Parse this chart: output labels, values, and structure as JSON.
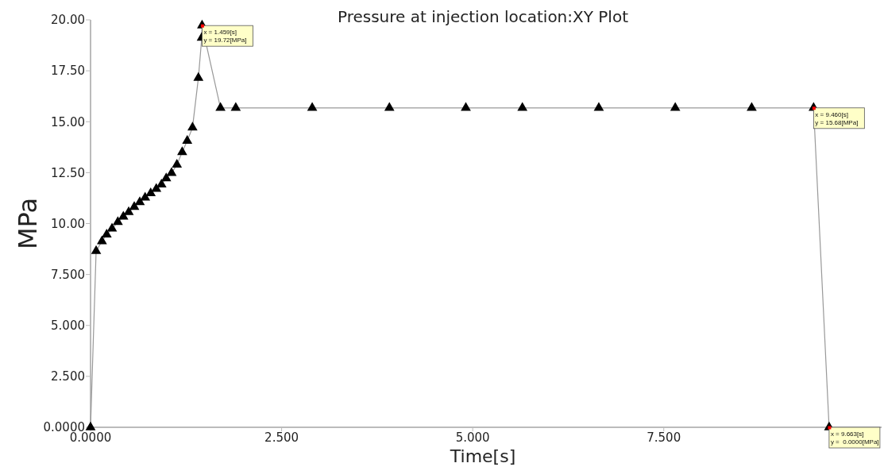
{
  "chart_data": {
    "type": "line",
    "title": "Pressure at injection location:XY Plot",
    "xlabel": "Time[s]",
    "ylabel": "MPa",
    "x": [
      0,
      0.073,
      0.149,
      0.211,
      0.281,
      0.357,
      0.429,
      0.499,
      0.572,
      0.644,
      0.714,
      0.787,
      0.86,
      0.928,
      0.99,
      1.06,
      1.13,
      1.199,
      1.265,
      1.334,
      1.411,
      1.455,
      1.459,
      1.7,
      1.9,
      2.9,
      3.91,
      4.91,
      5.65,
      6.65,
      7.65,
      8.65,
      9.46,
      9.663
    ],
    "series": [
      {
        "color": "#000000",
        "values": [
          0,
          8.65,
          9.13,
          9.46,
          9.75,
          10.07,
          10.34,
          10.56,
          10.82,
          11.05,
          11.27,
          11.49,
          11.7,
          11.92,
          12.22,
          12.48,
          12.89,
          13.51,
          14.06,
          14.71,
          17.15,
          19.12,
          19.72,
          15.68,
          15.68,
          15.68,
          15.68,
          15.68,
          15.68,
          15.68,
          15.68,
          15.68,
          15.68,
          0
        ]
      }
    ],
    "xlim": [
      0,
      10.35
    ],
    "ylim": [
      0,
      20
    ],
    "xticks": [
      {
        "value": 0,
        "label": "0.0000"
      },
      {
        "value": 2.5,
        "label": "2.500"
      },
      {
        "value": 5,
        "label": "5.000"
      },
      {
        "value": 7.5,
        "label": "7.500"
      }
    ],
    "yticks": [
      {
        "value": 0,
        "label": "0.0000"
      },
      {
        "value": 2.5,
        "label": "2.500"
      },
      {
        "value": 5,
        "label": "5.000"
      },
      {
        "value": 7.5,
        "label": "7.500"
      },
      {
        "value": 10,
        "label": "10.00"
      },
      {
        "value": 12.5,
        "label": "12.50"
      },
      {
        "value": 15,
        "label": "15.00"
      },
      {
        "value": 17.5,
        "label": "17.50"
      },
      {
        "value": 20,
        "label": "20.00"
      }
    ],
    "marker": "triangle",
    "grid": false,
    "annotations": [
      {
        "text": "x = 1.459[s]\ny = 19.72[MPa]",
        "x": 1.459,
        "y": 19.72
      },
      {
        "text": "x = 9.460[s]\ny = 15.68[MPa]",
        "x": 9.46,
        "y": 15.68
      },
      {
        "text": "x = 9.663[s]\ny =  0.0000[MPa]",
        "x": 9.663,
        "y": 0
      }
    ]
  }
}
